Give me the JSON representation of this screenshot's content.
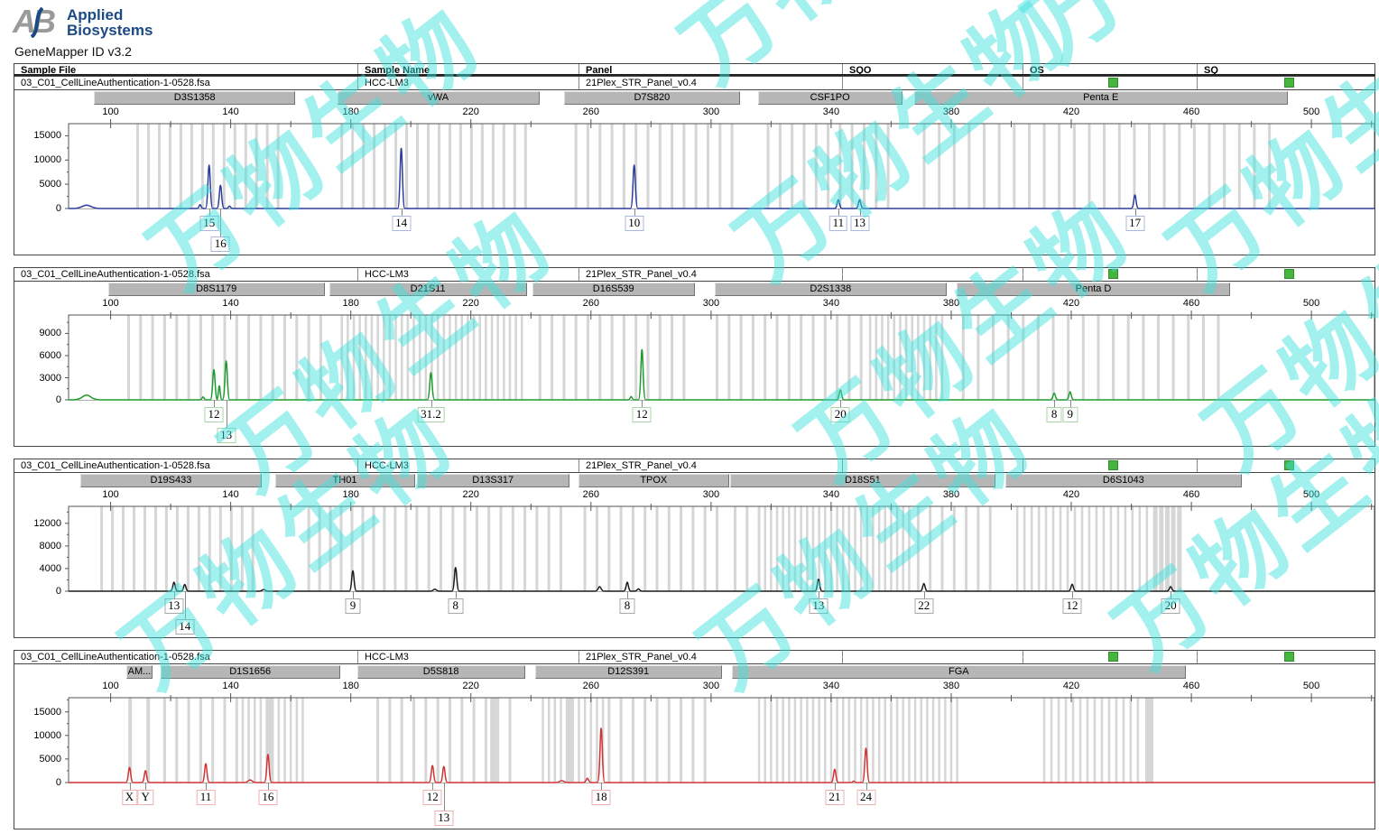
{
  "branding": {
    "logo_letters": "AB",
    "brand_line1": "Applied",
    "brand_line2": "Biosystems",
    "app_title": "GeneMapper ID v3.2"
  },
  "watermark": {
    "text": "万物生物"
  },
  "table": {
    "columns": [
      "Sample File",
      "Sample Name",
      "Panel",
      "SQO",
      "OS",
      "SQ"
    ]
  },
  "sample": {
    "file": "03_C01_CellLineAuthentication-1-0528.fsa",
    "name": "HCC-LM3",
    "panel": "21Plex_STR_Panel_v0.4",
    "sqo": "",
    "os_status": "green",
    "sq_status": "green"
  },
  "colors": {
    "status_green": "#46b53e",
    "bin_gray": "#d6d6d6",
    "marker_bar": "#b6b6b6",
    "border_dark": "#444444",
    "brand_navy": "#1b4a86",
    "logo_gray": "#9a9a9a",
    "watermark_cyan": "#3ee2dd"
  },
  "chart_data": {
    "type": "line",
    "subtype": "electropherogram",
    "x_axis": {
      "unit": "size (bp)",
      "min": 86,
      "max": 521,
      "major_ticks": [
        100,
        140,
        180,
        220,
        260,
        300,
        340,
        380,
        420,
        460,
        500
      ],
      "minor_tick_step": 20
    },
    "panels": [
      {
        "dye": "blue",
        "dye_color": "#2b3d9c",
        "box_border": "#a9b8dc",
        "y_axis": {
          "max": 17500,
          "ticks": [
            0,
            5000,
            10000,
            15000
          ]
        },
        "markers": [
          {
            "name": "D3S1358",
            "start_bp": 94.5,
            "end_bp": 161.5,
            "bins": [
              {
                "start": 109,
                "end": 159,
                "step": 3.6,
                "w": 3
              }
            ]
          },
          {
            "name": "vWA",
            "start_bp": 175.5,
            "end_bp": 242.8,
            "bins": [
              {
                "start": 177,
                "end": 241,
                "step": 3.6,
                "w": 3
              }
            ]
          },
          {
            "name": "D7S820",
            "start_bp": 251.0,
            "end_bp": 309.6,
            "bins": [
              {
                "start": 255,
                "end": 307,
                "step": 4,
                "w": 3
              }
            ]
          },
          {
            "name": "CSF1PO",
            "start_bp": 315.6,
            "end_bp": 363.7,
            "bins": [
              {
                "start": 319,
                "end": 361,
                "step": 4,
                "w": 3
              }
            ]
          },
          {
            "name": "Penta E",
            "start_bp": 367.6,
            "end_bp": 492.1,
            "bins": [
              {
                "start": 371,
                "end": 488,
                "step": 5,
                "w": 3
              }
            ]
          }
        ],
        "peaks": [
          {
            "bp": 92.0,
            "rfu": 700,
            "w": 9
          },
          {
            "bp": 129.8,
            "rfu": 800,
            "w": 2
          },
          {
            "bp": 132.8,
            "rfu": 9000,
            "allele": "15",
            "label_row": 1
          },
          {
            "bp": 136.6,
            "rfu": 4800,
            "allele": "16",
            "label_row": 2
          },
          {
            "bp": 139.6,
            "rfu": 500,
            "w": 2
          },
          {
            "bp": 196.8,
            "rfu": 12400,
            "allele": "14",
            "label_row": 1
          },
          {
            "bp": 274.4,
            "rfu": 9000,
            "allele": "10",
            "label_row": 1
          },
          {
            "bp": 342.4,
            "rfu": 1800,
            "allele": "11",
            "label_row": 1
          },
          {
            "bp": 349.5,
            "rfu": 1800,
            "allele": "13",
            "label_row": 1
          },
          {
            "bp": 441.2,
            "rfu": 2800,
            "allele": "17",
            "label_row": 1
          }
        ]
      },
      {
        "dye": "green",
        "dye_color": "#1f9a2e",
        "box_border": "#a8d4a8",
        "y_axis": {
          "max": 11500,
          "ticks": [
            0,
            3000,
            6000,
            9000
          ]
        },
        "markers": [
          {
            "name": "D8S1179",
            "start_bp": 99.1,
            "end_bp": 171.3,
            "bins": [
              {
                "start": 106,
                "end": 170,
                "step": 4,
                "w": 3
              }
            ]
          },
          {
            "name": "D21S11",
            "start_bp": 172.8,
            "end_bp": 238.6,
            "bins": [
              {
                "start": 177,
                "end": 237,
                "step": 2,
                "w": 2.5
              }
            ]
          },
          {
            "name": "D16S539",
            "start_bp": 240.4,
            "end_bp": 294.6,
            "bins": [
              {
                "start": 243,
                "end": 293,
                "step": 4,
                "w": 3
              }
            ]
          },
          {
            "name": "D2S1338",
            "start_bp": 301.2,
            "end_bp": 378.5,
            "bins": [
              {
                "start": 302,
                "end": 352,
                "step": 4,
                "w": 3
              },
              {
                "start": 353,
                "end": 377,
                "step": 2,
                "w": 2.5
              }
            ]
          },
          {
            "name": "Penta D",
            "start_bp": 381.8,
            "end_bp": 472.9,
            "bins": [
              {
                "start": 384,
                "end": 469,
                "step": 5,
                "w": 3
              }
            ]
          }
        ],
        "peaks": [
          {
            "bp": 92.0,
            "rfu": 650,
            "w": 9
          },
          {
            "bp": 130.8,
            "rfu": 400,
            "w": 2
          },
          {
            "bp": 134.4,
            "rfu": 4100,
            "allele": "12",
            "label_row": 1
          },
          {
            "bp": 136.2,
            "rfu": 1900,
            "w": 1.8
          },
          {
            "bp": 138.5,
            "rfu": 5300,
            "allele": "13",
            "label_row": 2
          },
          {
            "bp": 206.7,
            "rfu": 3700,
            "allele": "31.2",
            "label_row": 1
          },
          {
            "bp": 273.4,
            "rfu": 450,
            "w": 2
          },
          {
            "bp": 277.0,
            "rfu": 6800,
            "allele": "12",
            "label_row": 1
          },
          {
            "bp": 343.1,
            "rfu": 1350,
            "allele": "20",
            "label_row": 1
          },
          {
            "bp": 414.3,
            "rfu": 900,
            "allele": "8",
            "label_row": 1
          },
          {
            "bp": 419.6,
            "rfu": 1100,
            "allele": "9",
            "label_row": 1
          }
        ]
      },
      {
        "dye": "black",
        "dye_color": "#1c1c1c",
        "box_border": "#a8a8a8",
        "y_axis": {
          "max": 15000,
          "ticks": [
            0,
            4000,
            8000,
            12000
          ]
        },
        "markers": [
          {
            "name": "D19S433",
            "start_bp": 90.0,
            "end_bp": 150.2,
            "bins": [
              {
                "start": 97,
                "end": 149,
                "step": 3.6,
                "w": 3
              }
            ]
          },
          {
            "name": "TH01",
            "start_bp": 154.7,
            "end_bp": 201.3,
            "bins": [
              {
                "start": 166,
                "end": 202,
                "step": 3.6,
                "w": 3
              }
            ]
          },
          {
            "name": "D13S317",
            "start_bp": 201.9,
            "end_bp": 252.8,
            "bins": [
              {
                "start": 206,
                "end": 250,
                "step": 4,
                "w": 3
              }
            ]
          },
          {
            "name": "TPOX",
            "start_bp": 255.8,
            "end_bp": 306.0,
            "bins": [
              {
                "start": 258,
                "end": 305,
                "step": 4,
                "w": 3
              }
            ]
          },
          {
            "name": "D18S51",
            "start_bp": 306.3,
            "end_bp": 394.7,
            "bins": [
              {
                "start": 308,
                "end": 317,
                "step": 4,
                "w": 3
              },
              {
                "start": 318,
                "end": 366,
                "step": 2,
                "w": 2.5
              },
              {
                "start": 369,
                "end": 394,
                "step": 4,
                "w": 3
              }
            ]
          },
          {
            "name": "D6S1043",
            "start_bp": 398.0,
            "end_bp": 476.8,
            "bins": [
              {
                "start": 402,
                "end": 446,
                "step": 2.4,
                "w": 2.5
              },
              {
                "start": 448,
                "end": 456,
                "step": 2,
                "w": 5
              }
            ]
          }
        ],
        "peaks": [
          {
            "bp": 121.1,
            "rfu": 1600,
            "allele": "13",
            "label_row": 1
          },
          {
            "bp": 124.7,
            "rfu": 1200,
            "allele": "14",
            "label_row": 2
          },
          {
            "bp": 151.0,
            "rfu": 300,
            "w": 3
          },
          {
            "bp": 180.7,
            "rfu": 3600,
            "allele": "9",
            "label_row": 1
          },
          {
            "bp": 208.0,
            "rfu": 350,
            "w": 3
          },
          {
            "bp": 214.9,
            "rfu": 4200,
            "allele": "8",
            "label_row": 1
          },
          {
            "bp": 262.9,
            "rfu": 800,
            "w": 3
          },
          {
            "bp": 272.1,
            "rfu": 1600,
            "allele": "8",
            "label_row": 1
          },
          {
            "bp": 275.8,
            "rfu": 400,
            "w": 2.5
          },
          {
            "bp": 335.8,
            "rfu": 2100,
            "allele": "13",
            "label_row": 1
          },
          {
            "bp": 370.9,
            "rfu": 1350,
            "allele": "22",
            "label_row": 1
          },
          {
            "bp": 420.3,
            "rfu": 1250,
            "allele": "12",
            "label_row": 1
          },
          {
            "bp": 453.1,
            "rfu": 800,
            "allele": "20",
            "label_row": 1
          }
        ]
      },
      {
        "dye": "red",
        "dye_color": "#cf3434",
        "box_border": "#efb0b0",
        "y_axis": {
          "max": 18000,
          "ticks": [
            0,
            5000,
            10000,
            15000
          ]
        },
        "markers": [
          {
            "name": "AM...",
            "start_bp": 105.1,
            "end_bp": 114.1,
            "bins": [
              {
                "start": 106.5,
                "end": 112.5,
                "step": 6,
                "w": 4
              }
            ]
          },
          {
            "name": "D1S1656",
            "start_bp": 116.5,
            "end_bp": 176.4,
            "bins": [
              {
                "start": 118,
                "end": 143,
                "step": 4,
                "w": 3
              },
              {
                "start": 144,
                "end": 165,
                "step": 2,
                "w": 2.5
              },
              {
                "start": 153,
                "end": 156,
                "step": 10,
                "w": 8
              }
            ]
          },
          {
            "name": "D5S818",
            "start_bp": 182.1,
            "end_bp": 238.0,
            "bins": [
              {
                "start": 189,
                "end": 235,
                "step": 4,
                "w": 3
              },
              {
                "start": 227.5,
                "end": 228.5,
                "step": 10,
                "w": 7
              }
            ]
          },
          {
            "name": "D12S391",
            "start_bp": 241.3,
            "end_bp": 303.6,
            "bins": [
              {
                "start": 244,
                "end": 264,
                "step": 2,
                "w": 2.5
              },
              {
                "start": 253,
                "end": 255,
                "step": 10,
                "w": 8
              },
              {
                "start": 266,
                "end": 298,
                "step": 4,
                "w": 3
              }
            ]
          },
          {
            "name": "FGA",
            "start_bp": 306.9,
            "end_bp": 458.1,
            "bins": [
              {
                "start": 316,
                "end": 382,
                "step": 2,
                "w": 2.5
              },
              {
                "start": 411,
                "end": 444,
                "step": 2.4,
                "w": 2.5
              },
              {
                "start": 446,
                "end": 450,
                "step": 10,
                "w": 9
              }
            ]
          }
        ],
        "peaks": [
          {
            "bp": 106.3,
            "rfu": 3200,
            "allele": "X",
            "label_row": 1
          },
          {
            "bp": 111.6,
            "rfu": 2500,
            "allele": "Y",
            "label_row": 1
          },
          {
            "bp": 131.7,
            "rfu": 4000,
            "allele": "11",
            "label_row": 1
          },
          {
            "bp": 146.5,
            "rfu": 550,
            "w": 4
          },
          {
            "bp": 152.4,
            "rfu": 6000,
            "allele": "16",
            "label_row": 1
          },
          {
            "bp": 207.2,
            "rfu": 3600,
            "allele": "12",
            "label_row": 1
          },
          {
            "bp": 211.0,
            "rfu": 3400,
            "allele": "13",
            "label_row": 2
          },
          {
            "bp": 250.3,
            "rfu": 400,
            "w": 4
          },
          {
            "bp": 258.8,
            "rfu": 900,
            "w": 2.5
          },
          {
            "bp": 263.4,
            "rfu": 11500,
            "allele": "18",
            "label_row": 1
          },
          {
            "bp": 341.2,
            "rfu": 2800,
            "allele": "21",
            "label_row": 1
          },
          {
            "bp": 347.5,
            "rfu": 300,
            "w": 2
          },
          {
            "bp": 351.6,
            "rfu": 7300,
            "allele": "24",
            "label_row": 1
          }
        ]
      }
    ]
  }
}
